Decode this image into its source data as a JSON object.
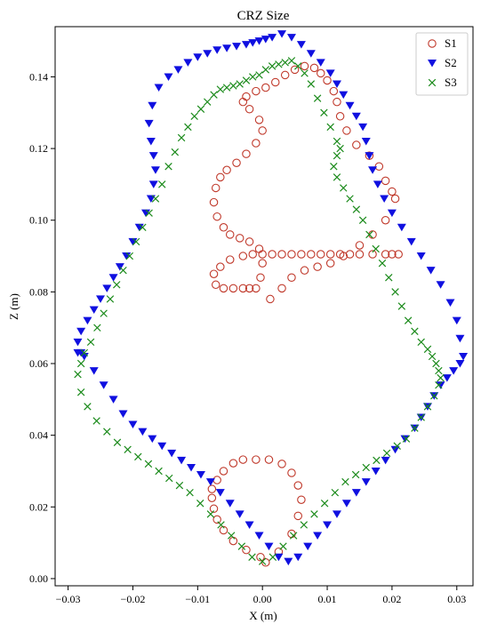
{
  "chart_data": {
    "type": "scatter",
    "title": "CRZ Size",
    "xlabel": "X (m)",
    "ylabel": "Z (m)",
    "xlim": [
      -0.032,
      0.0325
    ],
    "ylim": [
      -0.002,
      0.154
    ],
    "xticks": [
      -0.03,
      -0.02,
      -0.01,
      0.0,
      0.01,
      0.02,
      0.03
    ],
    "xtick_labels": [
      "−0.03",
      "−0.02",
      "−0.01",
      "0.00",
      "0.01",
      "0.02",
      "0.03"
    ],
    "yticks": [
      0.0,
      0.02,
      0.04,
      0.06,
      0.08,
      0.1,
      0.12,
      0.14
    ],
    "ytick_labels": [
      "0.00",
      "0.02",
      "0.04",
      "0.06",
      "0.08",
      "0.10",
      "0.12",
      "0.14"
    ],
    "grid": false,
    "legend_position": "top-right",
    "series": [
      {
        "name": "S1",
        "marker": "open-circle",
        "color": "#c0392b",
        "x": [
          0.0005,
          0.0025,
          0.0045,
          0.0055,
          0.006,
          0.0055,
          0.0045,
          0.003,
          0.001,
          -0.001,
          -0.003,
          -0.0045,
          -0.006,
          -0.007,
          -0.0078,
          -0.0078,
          -0.0075,
          -0.007,
          -0.006,
          -0.0045,
          -0.0025,
          -0.0003,
          0.0012,
          0.003,
          0.0045,
          0.0065,
          0.0085,
          0.0105,
          0.0125,
          0.015,
          0.017,
          0.019,
          0.0205,
          0.02,
          0.019,
          0.018,
          0.0165,
          0.0145,
          0.013,
          0.012,
          0.0115,
          0.011,
          0.01,
          0.009,
          0.008,
          0.0065,
          0.005,
          0.0035,
          0.002,
          0.0005,
          -0.001,
          -0.0025,
          -0.003,
          -0.002,
          -0.0005,
          0.0,
          -0.001,
          -0.0025,
          -0.004,
          -0.0055,
          -0.0065,
          -0.0072,
          -0.0075,
          -0.007,
          -0.006,
          -0.005,
          -0.0035,
          -0.002,
          -0.0005,
          0.0,
          -0.0003,
          -0.001,
          -0.002,
          -0.003,
          -0.0045,
          -0.006,
          -0.0072,
          -0.0075,
          -0.0065,
          -0.005,
          -0.003,
          -0.0015,
          0.0,
          0.0015,
          0.003,
          0.0045,
          0.006,
          0.0075,
          0.009,
          0.0105,
          0.012,
          0.0135,
          0.015,
          0.017,
          0.019,
          0.02,
          0.021
        ],
        "y": [
          0.0045,
          0.0075,
          0.0125,
          0.0175,
          0.022,
          0.026,
          0.0295,
          0.032,
          0.0332,
          0.0332,
          0.0332,
          0.0322,
          0.03,
          0.0275,
          0.025,
          0.0225,
          0.0195,
          0.0165,
          0.0135,
          0.0105,
          0.008,
          0.006,
          0.078,
          0.081,
          0.084,
          0.086,
          0.087,
          0.088,
          0.09,
          0.093,
          0.096,
          0.1,
          0.106,
          0.108,
          0.111,
          0.115,
          0.118,
          0.121,
          0.125,
          0.129,
          0.133,
          0.136,
          0.139,
          0.141,
          0.1425,
          0.143,
          0.142,
          0.1405,
          0.1385,
          0.137,
          0.136,
          0.1345,
          0.133,
          0.131,
          0.128,
          0.125,
          0.1215,
          0.1185,
          0.116,
          0.114,
          0.112,
          0.109,
          0.105,
          0.101,
          0.098,
          0.096,
          0.095,
          0.094,
          0.092,
          0.088,
          0.084,
          0.081,
          0.081,
          0.081,
          0.081,
          0.081,
          0.082,
          0.085,
          0.087,
          0.089,
          0.09,
          0.0905,
          0.0905,
          0.0905,
          0.0905,
          0.0905,
          0.0905,
          0.0905,
          0.0905,
          0.0905,
          0.0905,
          0.0905,
          0.0905,
          0.0905,
          0.0905,
          0.0905,
          0.0905
        ]
      },
      {
        "name": "S2",
        "marker": "filled-triangle-down",
        "color": "#1010e0",
        "x": [
          -0.028,
          -0.0285,
          -0.028,
          -0.027,
          -0.026,
          -0.025,
          -0.024,
          -0.023,
          -0.022,
          -0.021,
          -0.02,
          -0.019,
          -0.018,
          -0.0172,
          -0.0168,
          -0.0165,
          -0.0168,
          -0.0172,
          -0.0175,
          -0.017,
          -0.016,
          -0.0145,
          -0.013,
          -0.0115,
          -0.01,
          -0.0085,
          -0.007,
          -0.0055,
          -0.004,
          -0.0025,
          -0.0015,
          -0.0005,
          0.0005,
          0.0015,
          0.003,
          0.0045,
          0.006,
          0.0075,
          0.009,
          0.0105,
          0.0115,
          0.0125,
          0.0135,
          0.0145,
          0.0155,
          0.016,
          0.0165,
          0.017,
          0.0178,
          0.0188,
          0.02,
          0.0215,
          0.023,
          0.0245,
          0.026,
          0.0275,
          0.029,
          0.03,
          0.0305,
          0.031,
          0.0305,
          0.0295,
          0.0285,
          0.0275,
          0.0265,
          0.0255,
          0.0245,
          0.0235,
          0.022,
          0.0205,
          0.019,
          0.0175,
          0.016,
          0.0145,
          0.013,
          0.0115,
          0.01,
          0.0085,
          0.007,
          0.0055,
          0.004,
          0.0025,
          0.001,
          -0.0005,
          -0.002,
          -0.0035,
          -0.005,
          -0.0065,
          -0.008,
          -0.0095,
          -0.011,
          -0.0125,
          -0.014,
          -0.0155,
          -0.017,
          -0.0185,
          -0.02,
          -0.0215,
          -0.023,
          -0.0245,
          -0.026,
          -0.0275,
          -0.0285
        ],
        "y": [
          0.063,
          0.066,
          0.069,
          0.072,
          0.075,
          0.078,
          0.081,
          0.084,
          0.087,
          0.09,
          0.094,
          0.098,
          0.102,
          0.106,
          0.11,
          0.114,
          0.118,
          0.122,
          0.127,
          0.132,
          0.137,
          0.14,
          0.142,
          0.144,
          0.1455,
          0.1465,
          0.1475,
          0.148,
          0.1485,
          0.149,
          0.1495,
          0.15,
          0.1505,
          0.151,
          0.152,
          0.151,
          0.149,
          0.1465,
          0.144,
          0.141,
          0.138,
          0.135,
          0.132,
          0.129,
          0.126,
          0.122,
          0.118,
          0.114,
          0.11,
          0.106,
          0.102,
          0.098,
          0.094,
          0.09,
          0.086,
          0.082,
          0.077,
          0.072,
          0.067,
          0.062,
          0.06,
          0.058,
          0.056,
          0.054,
          0.051,
          0.048,
          0.045,
          0.042,
          0.039,
          0.036,
          0.033,
          0.03,
          0.027,
          0.024,
          0.021,
          0.018,
          0.015,
          0.012,
          0.009,
          0.006,
          0.0048,
          0.006,
          0.009,
          0.012,
          0.015,
          0.018,
          0.021,
          0.024,
          0.027,
          0.029,
          0.031,
          0.033,
          0.035,
          0.037,
          0.039,
          0.041,
          0.043,
          0.046,
          0.05,
          0.054,
          0.058,
          0.062,
          0.063
        ]
      },
      {
        "name": "S3",
        "marker": "x",
        "color": "#1a8a1a",
        "x": [
          -0.0285,
          -0.028,
          -0.0275,
          -0.0265,
          -0.0255,
          -0.0245,
          -0.0235,
          -0.0225,
          -0.0215,
          -0.0205,
          -0.0195,
          -0.0185,
          -0.0175,
          -0.0165,
          -0.0155,
          -0.0145,
          -0.0135,
          -0.0125,
          -0.0115,
          -0.0105,
          -0.0095,
          -0.0085,
          -0.0075,
          -0.0065,
          -0.0055,
          -0.0045,
          -0.0035,
          -0.0025,
          -0.0015,
          -0.0005,
          0.0005,
          0.0015,
          0.0025,
          0.0035,
          0.0045,
          0.0055,
          0.0065,
          0.0075,
          0.0085,
          0.0095,
          0.0105,
          0.0115,
          0.012,
          0.0115,
          0.011,
          0.0115,
          0.0125,
          0.0135,
          0.0145,
          0.0155,
          0.0165,
          0.0175,
          0.0185,
          0.0195,
          0.0205,
          0.0215,
          0.0225,
          0.0235,
          0.0245,
          0.0255,
          0.0262,
          0.0268,
          0.0272,
          0.0275,
          0.0272,
          0.0265,
          0.0255,
          0.0245,
          0.0235,
          0.0222,
          0.0208,
          0.0192,
          0.0176,
          0.016,
          0.0144,
          0.0128,
          0.0112,
          0.0096,
          0.008,
          0.0064,
          0.0048,
          0.0032,
          0.0016,
          0.0,
          -0.0016,
          -0.0032,
          -0.0048,
          -0.0064,
          -0.008,
          -0.0096,
          -0.0112,
          -0.0128,
          -0.0144,
          -0.016,
          -0.0176,
          -0.0192,
          -0.0208,
          -0.0224,
          -0.024,
          -0.0256,
          -0.027,
          -0.028
        ],
        "y": [
          0.057,
          0.06,
          0.063,
          0.066,
          0.07,
          0.074,
          0.078,
          0.082,
          0.086,
          0.09,
          0.094,
          0.098,
          0.102,
          0.106,
          0.11,
          0.115,
          0.119,
          0.123,
          0.126,
          0.129,
          0.131,
          0.133,
          0.135,
          0.1365,
          0.137,
          0.1375,
          0.138,
          0.139,
          0.14,
          0.1405,
          0.142,
          0.143,
          0.1435,
          0.144,
          0.1445,
          0.143,
          0.141,
          0.138,
          0.134,
          0.13,
          0.126,
          0.122,
          0.12,
          0.118,
          0.115,
          0.112,
          0.109,
          0.106,
          0.103,
          0.1,
          0.096,
          0.092,
          0.088,
          0.084,
          0.08,
          0.076,
          0.072,
          0.069,
          0.066,
          0.064,
          0.062,
          0.06,
          0.058,
          0.056,
          0.054,
          0.051,
          0.048,
          0.045,
          0.042,
          0.039,
          0.037,
          0.035,
          0.033,
          0.031,
          0.029,
          0.027,
          0.024,
          0.021,
          0.018,
          0.015,
          0.012,
          0.009,
          0.006,
          0.0048,
          0.006,
          0.009,
          0.012,
          0.015,
          0.018,
          0.021,
          0.024,
          0.026,
          0.028,
          0.03,
          0.032,
          0.034,
          0.036,
          0.038,
          0.041,
          0.044,
          0.048,
          0.052
        ]
      }
    ]
  }
}
